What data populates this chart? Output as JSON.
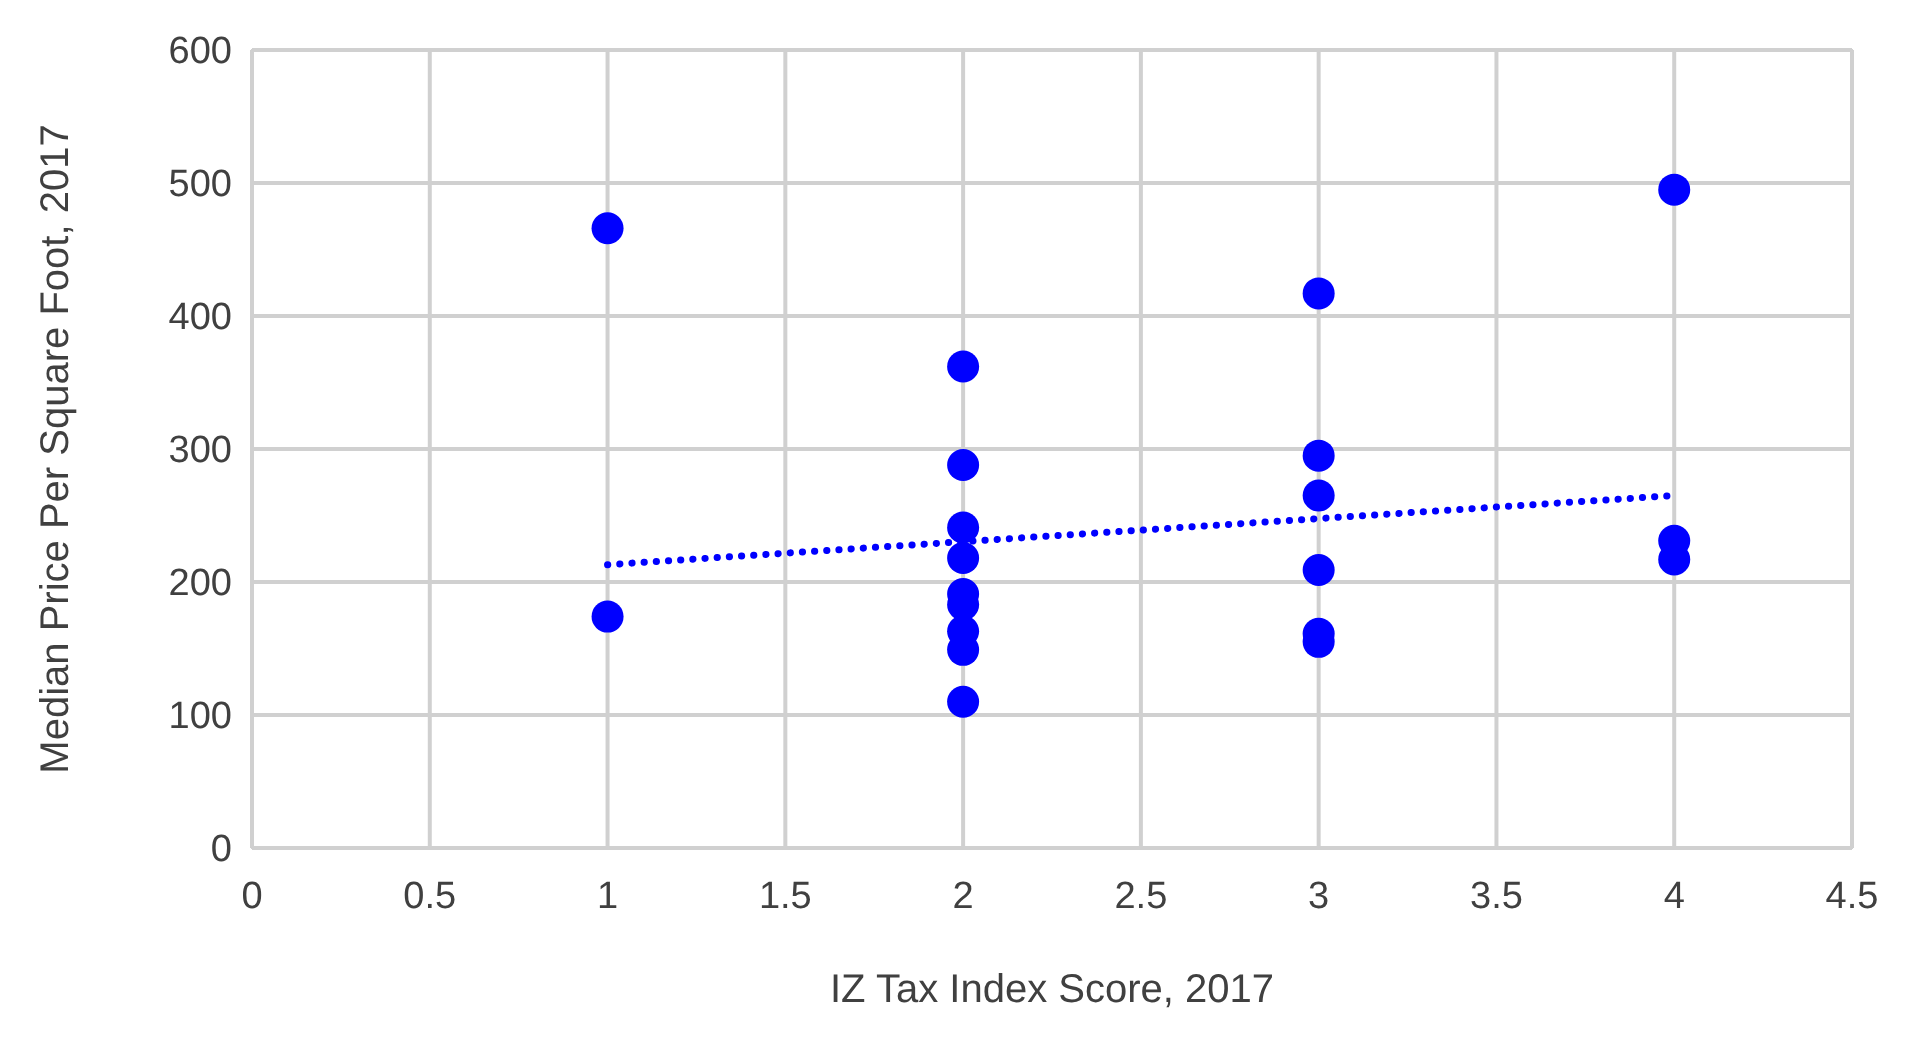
{
  "chart_data": {
    "type": "scatter",
    "xlabel": "IZ Tax Index Score, 2017",
    "ylabel": "Median Price Per Square Foot, 2017",
    "xlim": [
      0,
      4.5
    ],
    "ylim": [
      0,
      600
    ],
    "xticks": [
      0,
      0.5,
      1,
      1.5,
      2,
      2.5,
      3,
      3.5,
      4,
      4.5
    ],
    "yticks": [
      0,
      100,
      200,
      300,
      400,
      500,
      600
    ],
    "grid": true,
    "series": [
      {
        "color": "#0000ff",
        "marker": "circle",
        "x": [
          1,
          1,
          2,
          2,
          2,
          2,
          2,
          2,
          2,
          2,
          2,
          3,
          3,
          3,
          3,
          3,
          3,
          4,
          4,
          4
        ],
        "values": [
          466,
          174,
          362,
          288,
          241,
          218,
          191,
          183,
          163,
          149,
          110,
          417,
          295,
          265,
          209,
          161,
          155,
          495,
          231,
          217
        ]
      },
      {
        "type": "line",
        "color": "#0000ff",
        "marker": "none",
        "line_style": "dotted",
        "x": [
          1,
          4
        ],
        "values": [
          213,
          265
        ]
      }
    ]
  }
}
